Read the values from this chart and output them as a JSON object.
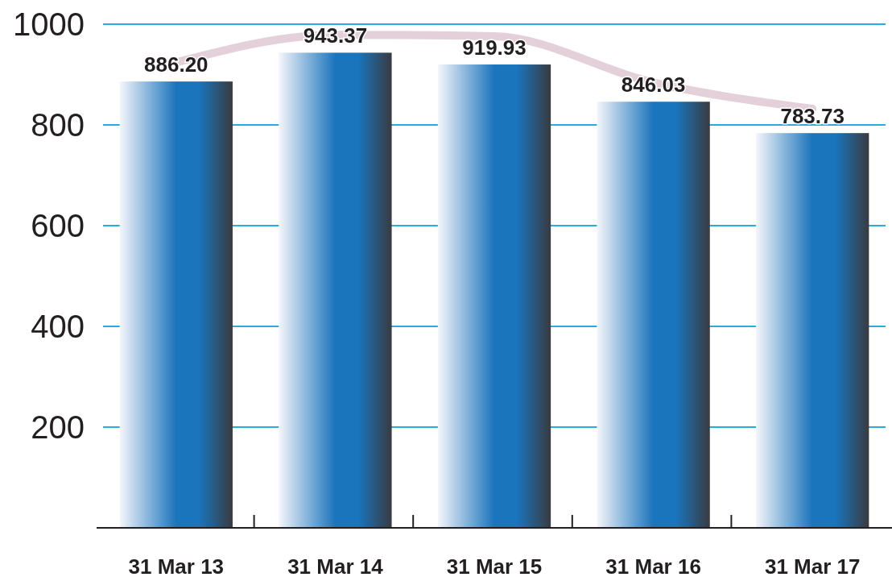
{
  "chart_data": {
    "type": "bar",
    "categories": [
      "31 Mar 13",
      "31 Mar 14",
      "31 Mar 15",
      "31 Mar 16",
      "31 Mar 17"
    ],
    "series": [
      {
        "color": "#1a75bc",
        "values": [
          886.2,
          943.37,
          919.93,
          846.03,
          783.73
        ],
        "value_labels": [
          "886.20",
          "943.37",
          "919.93",
          "846.03",
          "783.73"
        ]
      },
      {
        "type": "line",
        "color": "#e3d0d8",
        "values": [
          924,
          979,
          976,
          884,
          832
        ]
      }
    ],
    "ylim": [
      0,
      1000
    ],
    "yticks": [
      200,
      400,
      600,
      800,
      1000
    ],
    "grid": "y"
  }
}
